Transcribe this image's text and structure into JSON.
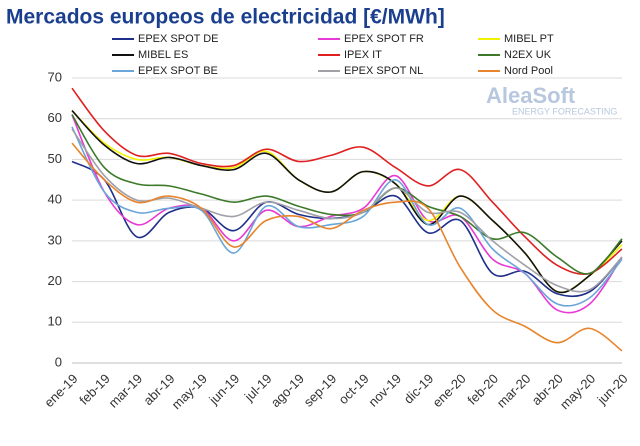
{
  "chart_data": {
    "type": "line",
    "title": "Mercados europeos de electricidad [€/MWh]",
    "watermark": "AleaSoft",
    "watermark_subtitle": "ENERGY FORECASTING",
    "categories": [
      "ene-19",
      "feb-19",
      "mar-19",
      "abr-19",
      "may-19",
      "jun-19",
      "jul-19",
      "ago-19",
      "sep-19",
      "oct-19",
      "nov-19",
      "dic-19",
      "ene-20",
      "feb-20",
      "mar-20",
      "abr-20",
      "may-20",
      "jun-20"
    ],
    "ylim": [
      0,
      70
    ],
    "yticks": [
      0,
      10,
      20,
      30,
      40,
      50,
      60,
      70
    ],
    "grid": true,
    "smooth": true,
    "series": [
      {
        "name": "EPEX SPOT DE",
        "color": "#1f2f8a",
        "values": [
          49.5,
          45,
          31,
          37,
          38,
          32.5,
          39.5,
          36.5,
          35.5,
          37,
          41,
          32,
          35,
          22,
          22.5,
          17,
          17.5,
          26
        ]
      },
      {
        "name": "EPEX SPOT FR",
        "color": "#e83ad4",
        "values": [
          61,
          42,
          34,
          38,
          38,
          30,
          37.5,
          33.5,
          36,
          38,
          46,
          35,
          36,
          25.5,
          22,
          13,
          14.5,
          26
        ]
      },
      {
        "name": "MIBEL PT",
        "color": "#f2f200",
        "values": [
          62,
          54,
          50,
          50.5,
          48.5,
          48,
          52,
          45,
          42,
          47,
          44,
          35,
          41,
          35,
          27,
          17.5,
          21.5,
          29
        ]
      },
      {
        "name": "MIBEL ES",
        "color": "#111111",
        "values": [
          62,
          53.5,
          49,
          50.5,
          48.5,
          47.5,
          51.5,
          45,
          42,
          47,
          44,
          34,
          41,
          35,
          27,
          17.5,
          21.5,
          30
        ]
      },
      {
        "name": "IPEX IT",
        "color": "#e02020",
        "values": [
          67.5,
          57,
          51,
          51.5,
          49,
          48.5,
          52.5,
          49.5,
          51,
          53,
          48,
          43.5,
          47.5,
          39.5,
          31,
          24,
          22,
          28
        ]
      },
      {
        "name": "N2EX UK",
        "color": "#3c7a2a",
        "values": [
          61,
          48,
          44,
          43.5,
          41.5,
          39.5,
          41,
          38.5,
          36.5,
          37,
          43,
          38.5,
          36,
          30.5,
          32,
          26,
          22,
          30.5
        ]
      },
      {
        "name": "EPEX SPOT BE",
        "color": "#6aa6d8",
        "values": [
          58,
          42,
          37,
          38,
          37.5,
          27,
          38.5,
          33.5,
          34,
          36,
          45,
          34,
          38,
          28,
          22,
          14.5,
          16,
          25.5
        ]
      },
      {
        "name": "EPEX SPOT NL",
        "color": "#a0a0a8",
        "values": [
          57.5,
          46,
          40,
          40.5,
          38,
          36,
          39.5,
          37.5,
          35.5,
          37,
          43,
          37,
          37,
          30,
          24,
          19,
          18,
          26
        ]
      },
      {
        "name": "Nord Pool",
        "color": "#e8842c",
        "values": [
          54,
          45,
          39.5,
          41,
          38,
          28.5,
          35,
          36,
          33,
          37.5,
          39.5,
          38,
          23.5,
          13,
          9,
          5,
          8.5,
          3
        ]
      }
    ]
  }
}
